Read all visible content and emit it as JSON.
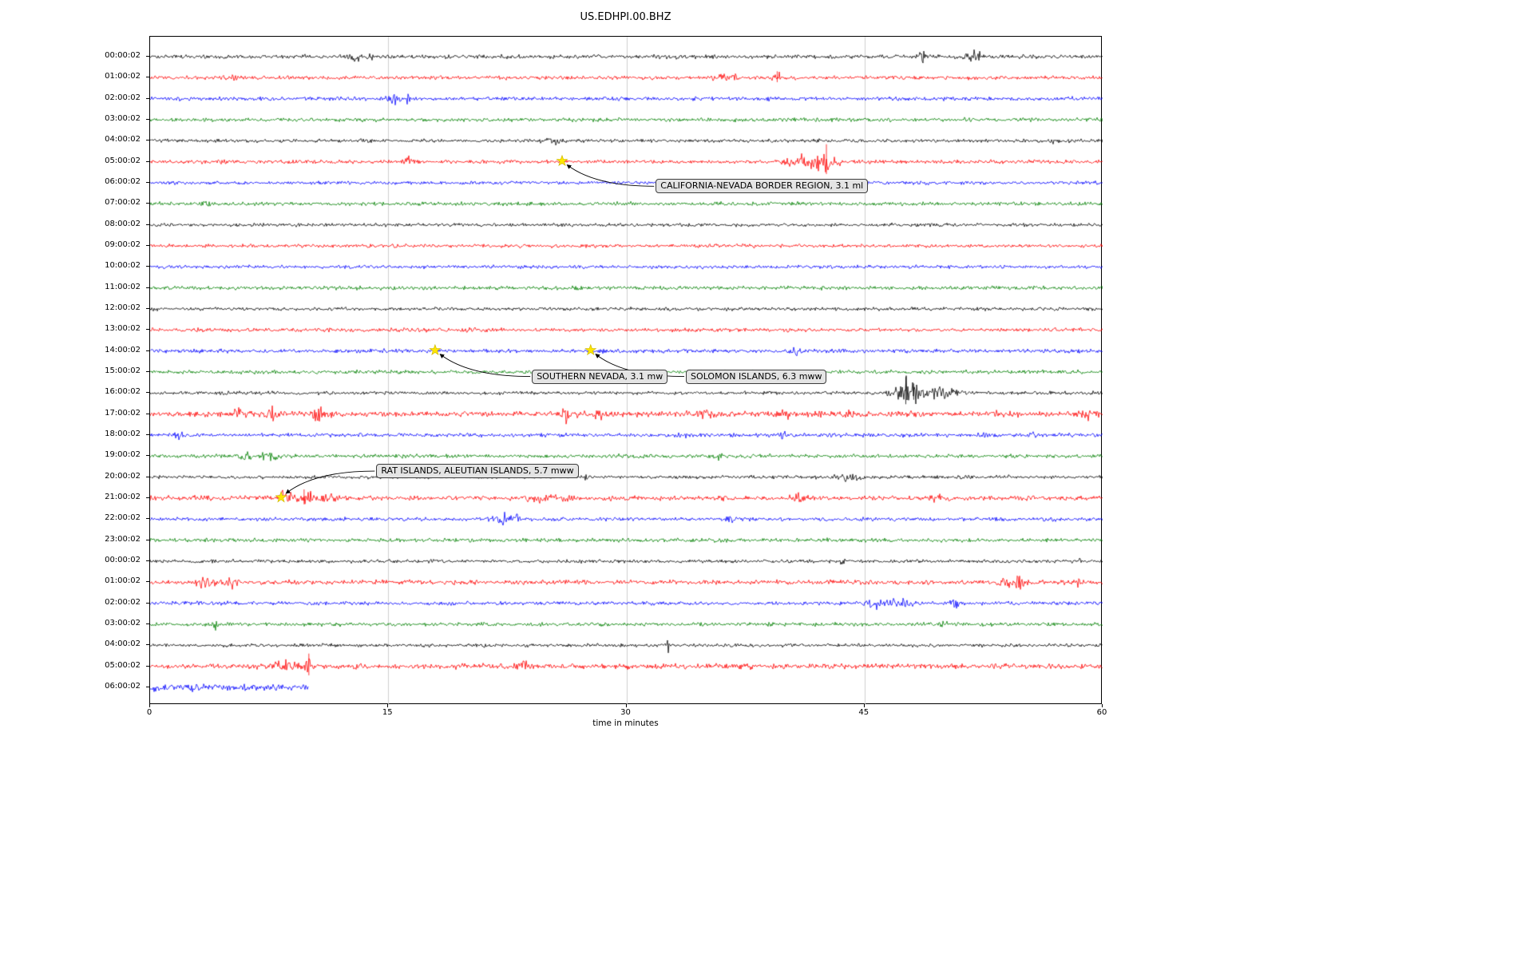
{
  "title": "US.EDHPI.00.BHZ",
  "chart_data": {
    "type": "line",
    "variant": "helicorder-seismogram",
    "title": "US.EDHPI.00.BHZ",
    "xlabel": "time in minutes",
    "xlim": [
      0,
      60
    ],
    "xticks": [
      0,
      15,
      30,
      45,
      60
    ],
    "grid": "vertical gridlines at 15, 30, 45",
    "gridline_color": "#cfcfcf",
    "color_cycle": [
      "#000000",
      "#ff0000",
      "#0000ff",
      "#008000"
    ],
    "marker_color": "#ffe600",
    "traces": [
      {
        "label": "00:00:02",
        "color": "#000000",
        "amp": 1.2,
        "bursts": [
          {
            "c": 12.9,
            "w": 0.3,
            "a": 2.5
          },
          {
            "c": 13.8,
            "w": 0.2,
            "a": 2
          },
          {
            "c": 48.6,
            "w": 0.3,
            "a": 2
          },
          {
            "c": 51.9,
            "w": 0.4,
            "a": 3
          }
        ],
        "spikes": []
      },
      {
        "label": "01:00:02",
        "color": "#ff0000",
        "amp": 1.1,
        "bursts": [
          {
            "c": 5.2,
            "w": 0.3,
            "a": 1.5
          },
          {
            "c": 36.2,
            "w": 0.8,
            "a": 1.5
          },
          {
            "c": 39.5,
            "w": 0.3,
            "a": 2.5
          }
        ],
        "spikes": [
          {
            "m": 39.5,
            "a": 8
          }
        ]
      },
      {
        "label": "02:00:02",
        "color": "#0000ff",
        "amp": 1.1,
        "bursts": [
          {
            "c": 15.3,
            "w": 0.4,
            "a": 2.5
          },
          {
            "c": 16.2,
            "w": 0.2,
            "a": 2
          }
        ],
        "spikes": []
      },
      {
        "label": "03:00:02",
        "color": "#008000",
        "amp": 1.1,
        "bursts": [],
        "spikes": []
      },
      {
        "label": "04:00:02",
        "color": "#000000",
        "amp": 1.0,
        "bursts": [
          {
            "c": 25.3,
            "w": 0.5,
            "a": 1.5
          },
          {
            "c": 57,
            "w": 0.3,
            "a": 1.2
          }
        ],
        "spikes": []
      },
      {
        "label": "05:00:02",
        "color": "#ff0000",
        "amp": 1.1,
        "bursts": [
          {
            "c": 16.3,
            "w": 0.4,
            "a": 2.5
          },
          {
            "c": 26,
            "w": 0.2,
            "a": 1.5
          },
          {
            "c": 40.8,
            "w": 1,
            "a": 3
          },
          {
            "c": 42.5,
            "w": 0.8,
            "a": 4
          }
        ],
        "spikes": [
          {
            "m": 42.6,
            "a": 22
          },
          {
            "m": 41.2,
            "a": 6
          }
        ]
      },
      {
        "label": "06:00:02",
        "color": "#0000ff",
        "amp": 1.0,
        "bursts": [],
        "spikes": []
      },
      {
        "label": "07:00:02",
        "color": "#008000",
        "amp": 1.1,
        "bursts": [
          {
            "c": 3.5,
            "w": 0.3,
            "a": 1.2
          }
        ],
        "spikes": []
      },
      {
        "label": "08:00:02",
        "color": "#000000",
        "amp": 1.0,
        "bursts": [],
        "spikes": []
      },
      {
        "label": "09:00:02",
        "color": "#ff0000",
        "amp": 1.0,
        "bursts": [],
        "spikes": []
      },
      {
        "label": "10:00:02",
        "color": "#0000ff",
        "amp": 1.0,
        "bursts": [],
        "spikes": []
      },
      {
        "label": "11:00:02",
        "color": "#008000",
        "amp": 1.1,
        "bursts": [],
        "spikes": []
      },
      {
        "label": "12:00:02",
        "color": "#000000",
        "amp": 1.0,
        "bursts": [],
        "spikes": []
      },
      {
        "label": "13:00:02",
        "color": "#ff0000",
        "amp": 1.1,
        "bursts": [
          {
            "c": 20,
            "w": 0.3,
            "a": 1
          }
        ],
        "spikes": []
      },
      {
        "label": "14:00:02",
        "color": "#0000ff",
        "amp": 1.1,
        "bursts": [
          {
            "c": 40.6,
            "w": 0.3,
            "a": 2
          }
        ],
        "spikes": []
      },
      {
        "label": "15:00:02",
        "color": "#008000",
        "amp": 1.1,
        "bursts": [],
        "spikes": []
      },
      {
        "label": "16:00:02",
        "color": "#000000",
        "amp": 1.0,
        "bursts": [
          {
            "c": 47.6,
            "w": 0.8,
            "a": 8
          },
          {
            "c": 49,
            "w": 0.8,
            "a": 4
          },
          {
            "c": 50.5,
            "w": 1,
            "a": 2
          }
        ],
        "spikes": [
          {
            "m": 47.6,
            "a": 20
          },
          {
            "m": 48.1,
            "a": 12
          }
        ]
      },
      {
        "label": "17:00:02",
        "color": "#ff0000",
        "amp": 1.6,
        "bursts": [
          {
            "c": 5.5,
            "w": 0.4,
            "a": 1.5
          },
          {
            "c": 7.6,
            "w": 0.4,
            "a": 2
          },
          {
            "c": 10.6,
            "w": 0.4,
            "a": 2.5
          },
          {
            "c": 26.2,
            "w": 0.5,
            "a": 2
          },
          {
            "c": 28.3,
            "w": 0.3,
            "a": 1.5
          },
          {
            "c": 35,
            "w": 0.4,
            "a": 1.5
          },
          {
            "c": 39.8,
            "w": 0.5,
            "a": 1.5
          },
          {
            "c": 44,
            "w": 0.3,
            "a": 1.2
          },
          {
            "c": 53.2,
            "w": 0.4,
            "a": 1.5
          },
          {
            "c": 59,
            "w": 0.3,
            "a": 1.5
          }
        ],
        "spikes": []
      },
      {
        "label": "18:00:02",
        "color": "#0000ff",
        "amp": 1.1,
        "bursts": [
          {
            "c": 1.8,
            "w": 0.3,
            "a": 2.5
          },
          {
            "c": 33.6,
            "w": 0.3,
            "a": 1.5
          },
          {
            "c": 40,
            "w": 0.4,
            "a": 2
          },
          {
            "c": 52.4,
            "w": 0.3,
            "a": 1.5
          },
          {
            "c": 55.6,
            "w": 0.3,
            "a": 1.5
          }
        ],
        "spikes": []
      },
      {
        "label": "19:00:02",
        "color": "#008000",
        "amp": 1.1,
        "bursts": [
          {
            "c": 5.9,
            "w": 0.4,
            "a": 2
          },
          {
            "c": 7.6,
            "w": 0.5,
            "a": 2.5
          },
          {
            "c": 35.6,
            "w": 0.4,
            "a": 1.5
          }
        ],
        "spikes": []
      },
      {
        "label": "20:00:02",
        "color": "#000000",
        "amp": 1.0,
        "bursts": [
          {
            "c": 27.4,
            "w": 0.2,
            "a": 2
          },
          {
            "c": 44,
            "w": 0.8,
            "a": 1.8
          },
          {
            "c": 54,
            "w": 0.3,
            "a": 1.2
          }
        ],
        "spikes": []
      },
      {
        "label": "21:00:02",
        "color": "#ff0000",
        "amp": 1.4,
        "bursts": [
          {
            "c": 8.5,
            "w": 0.5,
            "a": 2
          },
          {
            "c": 9.7,
            "w": 0.5,
            "a": 3
          },
          {
            "c": 11,
            "w": 0.8,
            "a": 1.5
          },
          {
            "c": 25,
            "w": 1.5,
            "a": 0.8
          },
          {
            "c": 40.8,
            "w": 0.4,
            "a": 1.5
          },
          {
            "c": 49.5,
            "w": 0.3,
            "a": 1.2
          }
        ],
        "spikes": [
          {
            "m": 9.7,
            "a": 11
          },
          {
            "m": 10.1,
            "a": 7
          }
        ]
      },
      {
        "label": "22:00:02",
        "color": "#0000ff",
        "amp": 1.1,
        "bursts": [
          {
            "c": 22.3,
            "w": 0.5,
            "a": 2.2
          },
          {
            "c": 23.2,
            "w": 0.3,
            "a": 1.5
          },
          {
            "c": 36.6,
            "w": 0.3,
            "a": 1.8
          }
        ],
        "spikes": []
      },
      {
        "label": "23:00:02",
        "color": "#008000",
        "amp": 1.1,
        "bursts": [
          {
            "c": 2,
            "w": 0.3,
            "a": 1
          }
        ],
        "spikes": []
      },
      {
        "label": "00:00:02",
        "color": "#000000",
        "amp": 1.0,
        "bursts": [
          {
            "c": 43.6,
            "w": 0.15,
            "a": 4
          },
          {
            "c": 58.3,
            "w": 0.3,
            "a": 2
          }
        ],
        "spikes": []
      },
      {
        "label": "01:00:02",
        "color": "#ff0000",
        "amp": 1.3,
        "bursts": [
          {
            "c": 3.5,
            "w": 0.6,
            "a": 2
          },
          {
            "c": 5,
            "w": 0.5,
            "a": 2
          },
          {
            "c": 54.5,
            "w": 0.8,
            "a": 2.5
          },
          {
            "c": 58.6,
            "w": 0.3,
            "a": 2
          }
        ],
        "spikes": []
      },
      {
        "label": "02:00:02",
        "color": "#0000ff",
        "amp": 1.1,
        "bursts": [
          {
            "c": 46,
            "w": 0.8,
            "a": 2.5
          },
          {
            "c": 47.5,
            "w": 0.6,
            "a": 2
          },
          {
            "c": 50.7,
            "w": 0.3,
            "a": 2
          }
        ],
        "spikes": []
      },
      {
        "label": "03:00:02",
        "color": "#008000",
        "amp": 1.1,
        "bursts": [
          {
            "c": 4.2,
            "w": 0.2,
            "a": 2.5
          },
          {
            "c": 50.3,
            "w": 0.5,
            "a": 1.2
          }
        ],
        "spikes": []
      },
      {
        "label": "04:00:02",
        "color": "#000000",
        "amp": 1.0,
        "bursts": [
          {
            "c": 32.6,
            "w": 0.15,
            "a": 3
          }
        ],
        "spikes": []
      },
      {
        "label": "05:00:02",
        "color": "#ff0000",
        "amp": 1.5,
        "bursts": [
          {
            "c": 8.5,
            "w": 0.8,
            "a": 2
          },
          {
            "c": 9.9,
            "w": 0.3,
            "a": 3
          },
          {
            "c": 23.5,
            "w": 0.3,
            "a": 1.5
          }
        ],
        "spikes": [
          {
            "m": 10,
            "a": 16
          }
        ]
      },
      {
        "label": "06:00:02",
        "color": "#0000ff",
        "amp": 2.2,
        "end": 10,
        "bursts": [],
        "spikes": []
      }
    ],
    "events": [
      {
        "label": "CALIFORNIA-NEVADA BORDER REGION, 3.1 ml",
        "trace_index": 5,
        "minute": 26,
        "label_minute": 31.9,
        "label_row": 6.2
      },
      {
        "label": "SOUTHERN NEVADA, 3.1 mw",
        "trace_index": 14,
        "minute": 18,
        "label_minute": 24.1,
        "label_row": 15.25
      },
      {
        "label": "SOLOMON ISLANDS, 6.3 mww",
        "trace_index": 14,
        "minute": 27.8,
        "label_minute": 33.8,
        "label_row": 15.25
      },
      {
        "label": "RAT ISLANDS, ALEUTIAN ISLANDS, 5.7 mww",
        "trace_index": 21,
        "minute": 8.3,
        "label_minute": 14.3,
        "label_row": 19.75
      }
    ]
  }
}
